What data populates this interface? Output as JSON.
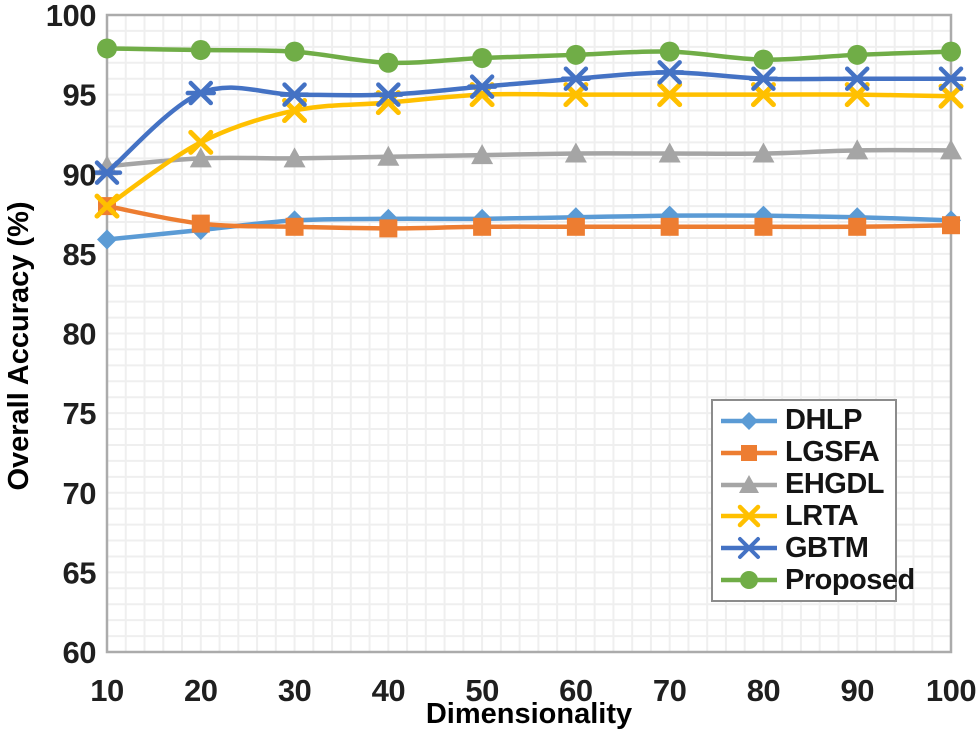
{
  "chart_data": {
    "type": "line",
    "title": "",
    "xlabel": "Dimensionality",
    "ylabel": "Overall Accuracy (%)",
    "x": [
      10,
      20,
      30,
      40,
      50,
      60,
      70,
      80,
      90,
      100
    ],
    "xlim": [
      10,
      100
    ],
    "ylim": [
      60,
      100
    ],
    "x_tick_labels": [
      "10",
      "20",
      "30",
      "40",
      "50",
      "60",
      "70",
      "80",
      "90",
      "100"
    ],
    "y_tick_labels": [
      "60",
      "65",
      "70",
      "75",
      "80",
      "85",
      "90",
      "95",
      "100"
    ],
    "grid": "fine mesh, minor x every 2 units, minor y every 1 unit, light gray",
    "legend_position": "inside lower-right",
    "line_style": "smoothed",
    "series": [
      {
        "name": "DHLP",
        "color": "#5B9BD5",
        "marker": "diamond",
        "values": [
          85.9,
          86.5,
          87.1,
          87.2,
          87.2,
          87.3,
          87.4,
          87.4,
          87.3,
          87.1
        ]
      },
      {
        "name": "LGSFA",
        "color": "#ED7D31",
        "marker": "square",
        "values": [
          88.0,
          86.9,
          86.7,
          86.6,
          86.7,
          86.7,
          86.7,
          86.7,
          86.7,
          86.8
        ]
      },
      {
        "name": "EHGDL",
        "color": "#A5A5A5",
        "marker": "triangle",
        "values": [
          90.5,
          91.0,
          91.0,
          91.1,
          91.2,
          91.3,
          91.3,
          91.3,
          91.5,
          91.5
        ]
      },
      {
        "name": "LRTA",
        "color": "#FFC000",
        "marker": "x",
        "values": [
          88.0,
          92.0,
          94.0,
          94.5,
          95.0,
          95.0,
          95.0,
          95.0,
          95.0,
          94.9
        ]
      },
      {
        "name": "GBTM",
        "color": "#4472C4",
        "marker": "asterisk",
        "values": [
          90.1,
          95.1,
          95.0,
          95.0,
          95.5,
          96.0,
          96.4,
          96.0,
          96.0,
          96.0
        ]
      },
      {
        "name": "Proposed",
        "color": "#70AD47",
        "marker": "circle",
        "values": [
          97.9,
          97.8,
          97.7,
          97.0,
          97.3,
          97.5,
          97.7,
          97.2,
          97.5,
          97.7
        ]
      }
    ],
    "style_colors": {
      "grid": "#EFEFEF",
      "plot_border": "#ABABAB",
      "tick_text": "#1f1f1f",
      "legend_border": "#8c8c8c",
      "background": "#FFFFFF"
    }
  }
}
